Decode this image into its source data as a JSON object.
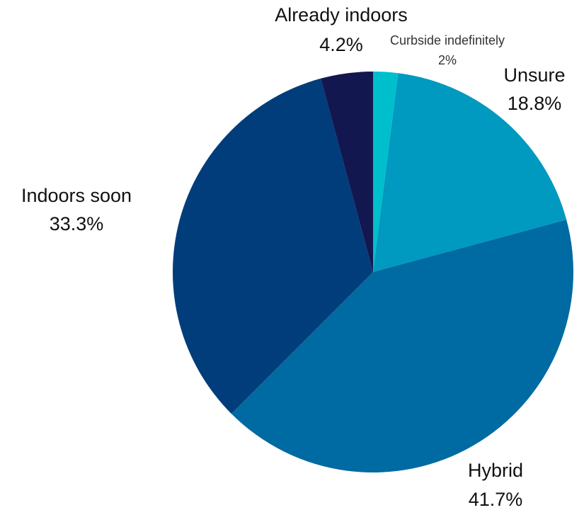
{
  "chart_data": {
    "type": "pie",
    "title": "",
    "slices": [
      {
        "name": "Curbside indefinitely",
        "value": 2.0,
        "label": "Curbside indefinitely",
        "value_label": "2%",
        "color": "#00bfcc",
        "label_size": "small"
      },
      {
        "name": "Unsure",
        "value": 18.8,
        "label": "Unsure",
        "value_label": "18.8%",
        "color": "#0099bf",
        "label_size": "large"
      },
      {
        "name": "Hybrid",
        "value": 41.7,
        "label": "Hybrid",
        "value_label": "41.7%",
        "color": "#006aa2",
        "label_size": "large"
      },
      {
        "name": "Indoors soon",
        "value": 33.3,
        "label": "Indoors soon",
        "value_label": "33.3%",
        "color": "#003d7a",
        "label_size": "large"
      },
      {
        "name": "Already indoors",
        "value": 4.2,
        "label": "Already indoors",
        "value_label": "4.2%",
        "color": "#12174f",
        "label_size": "large"
      }
    ],
    "start_angle": "12 o'clock",
    "direction": "clockwise",
    "legend": "none",
    "labels_placement": "outside"
  }
}
